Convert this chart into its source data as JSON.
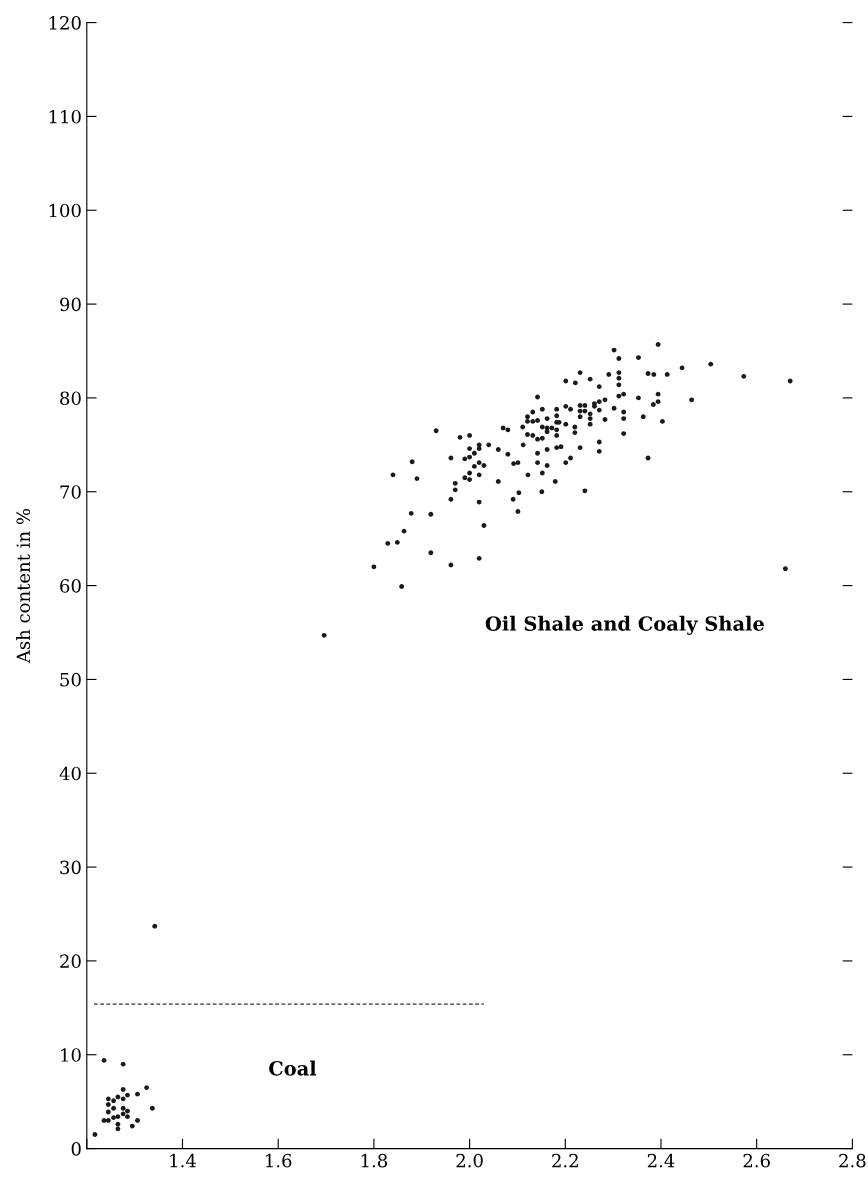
{
  "chart_data": {
    "type": "scatter",
    "ylabel": "Ash content in %",
    "annotations": [
      "Coal",
      "Oil Shale and Coaly Shale"
    ],
    "xlim": [
      1.2,
      2.8
    ],
    "ylim": [
      0,
      120
    ],
    "xticks": [
      {
        "value": 1.2,
        "label": null
      },
      1.4,
      1.6,
      1.8,
      {
        "value": 2.0,
        "label": "2.0"
      },
      2.2,
      2.4,
      2.6,
      2.8
    ],
    "yticks": [
      0,
      10,
      20,
      30,
      40,
      50,
      60,
      70,
      80,
      90,
      100,
      110,
      120
    ],
    "grid": false,
    "legend": false,
    "marker": "circle",
    "series": [
      {
        "color": "#1a1a1a",
        "x": [
          1.217,
          1.236,
          1.276,
          1.236,
          1.245,
          1.245,
          1.245,
          1.245,
          1.256,
          1.256,
          1.265,
          1.265,
          1.265,
          1.265,
          1.256,
          1.276,
          1.276,
          1.276,
          1.276,
          1.285,
          1.285,
          1.285,
          1.295,
          1.306,
          1.306,
          1.325,
          1.337,
          1.342,
          1.696,
          2.302,
          2.394,
          2.312,
          2.353,
          2.444,
          2.504,
          2.573,
          2.231,
          2.291,
          2.312,
          2.312,
          2.373,
          2.385,
          2.413,
          2.201,
          2.221,
          2.252,
          2.312,
          2.271,
          2.142,
          2.312,
          2.322,
          2.353,
          2.394,
          2.394,
          2.384,
          2.464,
          2.283,
          2.271,
          2.261,
          2.261,
          2.231,
          2.241,
          2.201,
          2.211,
          2.302,
          2.132,
          2.152,
          2.182,
          2.231,
          2.241,
          2.252,
          2.271,
          2.322,
          2.121,
          2.121,
          2.132,
          2.142,
          2.162,
          2.182,
          2.182,
          2.187,
          2.201,
          2.231,
          2.252,
          2.252,
          2.283,
          2.322,
          2.363,
          2.403,
          2.07,
          2.08,
          2.111,
          2.152,
          2.162,
          2.162,
          2.172,
          2.182,
          2.182,
          2.22,
          2.22,
          2.121,
          2.132,
          2.142,
          2.152,
          1.93,
          1.98,
          2.0,
          2.02,
          2.02,
          2.0,
          2.04,
          2.06,
          2.112,
          2.162,
          2.182,
          2.191,
          2.231,
          2.271,
          2.271,
          2.322,
          1.961,
          1.99,
          2.0,
          2.01,
          2.08,
          2.142,
          2.211,
          2.201,
          1.88,
          1.89,
          1.84,
          1.97,
          1.97,
          1.99,
          2.0,
          2.0,
          2.02,
          2.03,
          2.01,
          2.02,
          2.06,
          2.092,
          2.101,
          2.122,
          2.152,
          2.162,
          2.142,
          2.179,
          2.373,
          1.961,
          2.02,
          2.091,
          2.103,
          2.151,
          2.241,
          2.101,
          1.878,
          1.919,
          1.863,
          2.03,
          1.829,
          1.849,
          1.919,
          2.02,
          1.961,
          1.8,
          1.858,
          2.67,
          2.66
        ],
        "values": [
          1.5,
          9.4,
          9.0,
          3.0,
          3.0,
          3.9,
          4.7,
          5.3,
          5.1,
          4.3,
          5.5,
          3.4,
          2.6,
          2.1,
          3.3,
          6.3,
          5.3,
          4.3,
          3.7,
          5.7,
          4.0,
          3.4,
          2.4,
          5.8,
          3.0,
          6.5,
          4.3,
          23.7,
          54.7,
          85.1,
          85.7,
          84.2,
          84.3,
          83.2,
          83.6,
          82.3,
          82.7,
          82.5,
          82.7,
          82.1,
          82.6,
          82.5,
          82.5,
          81.8,
          81.6,
          82.0,
          81.4,
          81.2,
          80.1,
          80.2,
          80.4,
          80.0,
          80.4,
          79.6,
          79.3,
          79.8,
          79.8,
          79.6,
          79.4,
          79.1,
          79.2,
          79.2,
          79.1,
          78.8,
          78.9,
          78.5,
          78.8,
          78.8,
          78.6,
          78.6,
          78.3,
          78.7,
          78.5,
          78.0,
          77.5,
          77.5,
          77.6,
          77.8,
          78.1,
          77.4,
          77.4,
          77.2,
          78.0,
          77.8,
          77.2,
          77.7,
          77.8,
          78.0,
          77.5,
          76.8,
          76.6,
          76.9,
          76.9,
          76.8,
          76.4,
          76.8,
          76.6,
          76.0,
          76.9,
          76.3,
          76.1,
          76.0,
          75.6,
          75.7,
          76.5,
          75.8,
          76.0,
          75.0,
          74.6,
          74.6,
          75.0,
          74.5,
          75.0,
          74.5,
          74.7,
          74.8,
          74.7,
          75.3,
          74.3,
          76.2,
          73.6,
          73.5,
          73.7,
          74.1,
          74.0,
          74.1,
          73.6,
          73.1,
          73.2,
          71.4,
          71.8,
          70.9,
          70.2,
          71.5,
          72.0,
          71.3,
          73.1,
          72.8,
          72.7,
          71.8,
          71.1,
          73.0,
          73.1,
          71.8,
          72.0,
          72.8,
          73.1,
          71.1,
          73.6,
          69.2,
          68.9,
          69.2,
          69.9,
          70.0,
          70.1,
          67.9,
          67.7,
          67.6,
          65.8,
          66.4,
          64.5,
          64.6,
          63.5,
          62.9,
          62.2,
          62.0,
          59.9,
          81.8,
          61.8
        ]
      },
      {
        "type": "line",
        "color": "#333333",
        "line_style": "dashed",
        "marker": "none",
        "x": [
          1.215,
          2.03
        ],
        "values": [
          15.4,
          15.4
        ]
      }
    ]
  }
}
